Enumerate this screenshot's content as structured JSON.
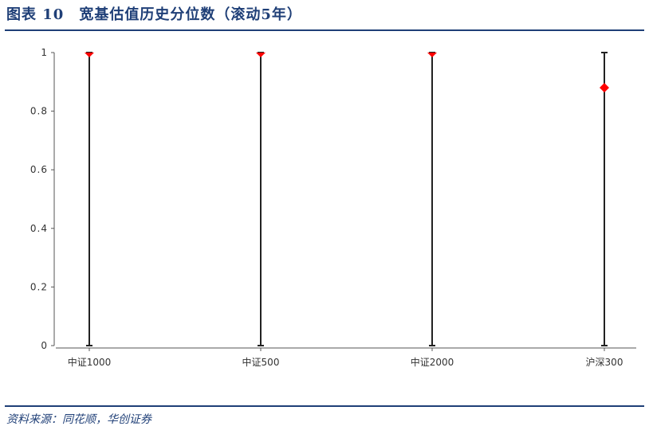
{
  "title": "图表 10　宽基估值历史分位数（滚动5年）",
  "source": "资料来源：同花顺，华创证券",
  "colors": {
    "rule": "#1f3f77",
    "marker": "#ff0000",
    "bar": "#222222"
  },
  "chart_data": {
    "type": "range-dot",
    "categories": [
      "中证1000",
      "中证500",
      "中证2000",
      "沪深300"
    ],
    "ranges": [
      [
        0,
        1
      ],
      [
        0,
        1
      ],
      [
        0,
        1
      ],
      [
        0,
        1
      ]
    ],
    "current": [
      1,
      1,
      1,
      0.88
    ],
    "markers": [
      "triangle-down",
      "triangle-down",
      "triangle-down",
      "diamond"
    ],
    "ylim": [
      0,
      1
    ],
    "yticks": [
      "0",
      "0.2",
      "0.4",
      "0.6",
      "0.8",
      "1"
    ],
    "grid": false
  }
}
